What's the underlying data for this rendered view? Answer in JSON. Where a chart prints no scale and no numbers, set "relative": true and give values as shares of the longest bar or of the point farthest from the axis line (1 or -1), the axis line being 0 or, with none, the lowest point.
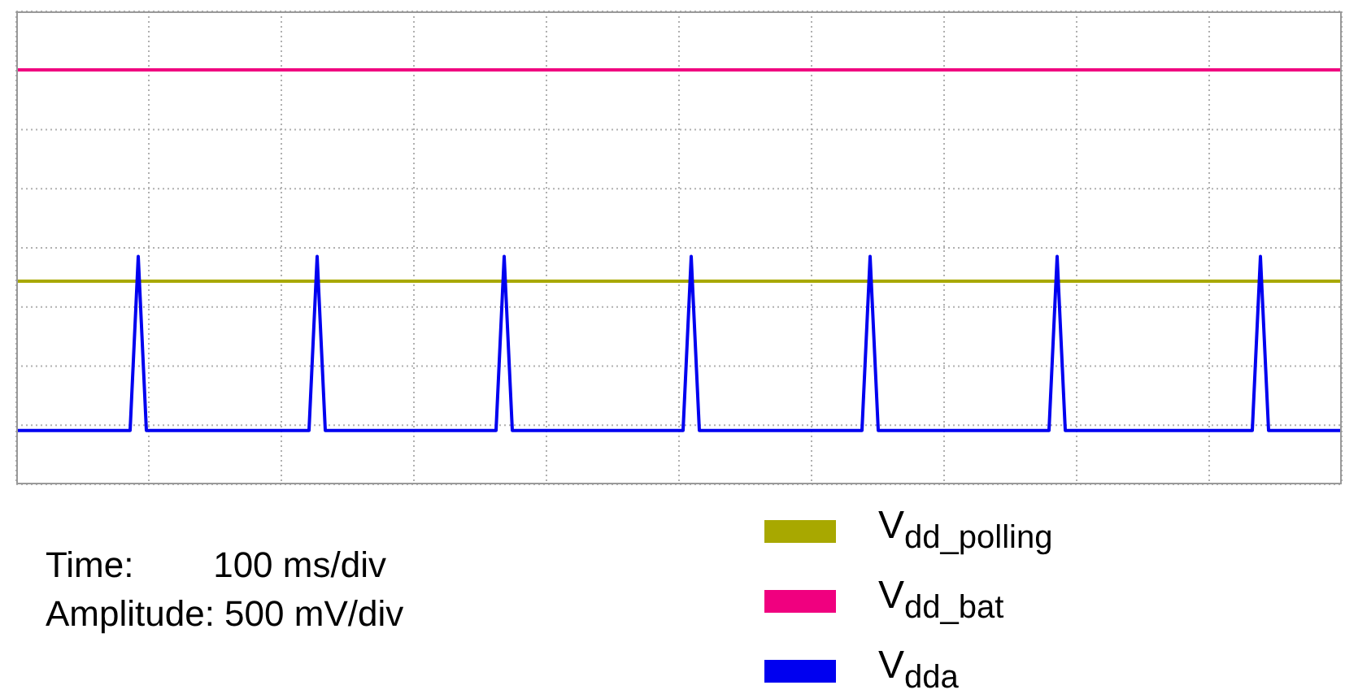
{
  "chart_data": {
    "type": "line",
    "relative": true,
    "grid": true,
    "legend": "bottom right",
    "marker": "none",
    "line_style": "solid",
    "annotations": [
      "Time:        100 ms/div",
      "Amplitude: 500 mV/div"
    ],
    "categories": [
      null,
      null,
      null,
      null,
      null,
      null,
      null,
      null,
      null,
      null,
      null,
      null,
      null,
      null,
      null,
      null,
      null,
      null,
      null,
      null,
      null,
      null,
      null,
      null,
      null,
      null,
      null,
      null,
      null,
      null,
      null,
      null,
      null,
      null,
      null,
      null,
      null,
      null,
      null,
      null,
      null,
      null,
      null,
      null,
      null,
      null,
      null,
      null,
      null,
      null,
      null,
      null,
      null,
      null,
      null,
      null,
      null,
      null,
      null,
      null,
      null,
      null,
      null,
      null,
      null,
      null,
      null,
      null,
      null,
      null,
      null,
      null,
      null,
      null,
      null,
      null,
      null,
      null,
      null,
      null,
      null,
      null,
      null,
      null,
      null,
      null,
      null,
      null,
      null,
      null,
      null,
      null,
      null,
      null,
      null,
      null,
      null,
      null,
      null,
      null,
      null,
      null,
      null,
      null,
      null,
      null,
      null,
      null,
      null,
      null,
      null,
      null,
      null,
      null,
      null,
      null,
      null,
      null,
      null,
      null,
      null,
      null,
      null,
      null,
      null,
      null,
      null,
      null,
      null,
      null,
      null,
      null,
      null,
      null,
      null,
      null,
      null,
      null,
      null,
      null,
      null,
      null,
      null,
      null,
      null,
      null,
      null,
      null,
      null,
      null,
      null,
      null,
      null,
      null,
      null,
      null,
      null,
      null,
      null,
      null,
      null,
      null,
      null,
      null
    ],
    "series": [
      {
        "name": "V$_{dd_polling}$",
        "color": "#a8a800",
        "values": [
          0.49,
          0.49,
          0.49,
          0.49,
          0.49,
          0.49,
          0.49,
          0.49,
          0.49,
          0.49,
          0.49,
          0.49,
          0.49,
          0.49,
          0.49,
          0.49,
          0.49,
          0.49,
          0.49,
          0.49,
          0.49,
          0.49,
          0.49,
          0.49,
          0.49,
          0.49,
          0.49,
          0.49,
          0.49,
          0.49,
          0.49,
          0.49,
          0.49,
          0.49,
          0.49,
          0.49,
          0.49,
          0.49,
          0.49,
          0.49,
          0.49,
          0.49,
          0.49,
          0.49,
          0.49,
          0.49,
          0.49,
          0.49,
          0.49,
          0.49,
          0.49,
          0.49,
          0.49,
          0.49,
          0.49,
          0.49,
          0.49,
          0.49,
          0.49,
          0.49,
          0.49,
          0.49,
          0.49,
          0.49,
          0.49,
          0.49,
          0.49,
          0.49,
          0.49,
          0.49,
          0.49,
          0.49,
          0.49,
          0.49,
          0.49,
          0.49,
          0.49,
          0.49,
          0.49,
          0.49,
          0.49,
          0.49,
          0.49,
          0.49,
          0.49,
          0.49,
          0.49,
          0.49,
          0.49,
          0.49,
          0.49,
          0.49,
          0.49,
          0.49,
          0.49,
          0.49,
          0.49,
          0.49,
          0.49,
          0.49,
          0.49,
          0.49,
          0.49,
          0.49,
          0.49,
          0.49,
          0.49,
          0.49,
          0.49,
          0.49,
          0.49,
          0.49,
          0.49,
          0.49,
          0.49,
          0.49,
          0.49,
          0.49,
          0.49,
          0.49,
          0.49,
          0.49,
          0.49,
          0.49,
          0.49,
          0.49,
          0.49,
          0.49,
          0.49,
          0.49,
          0.49,
          0.49,
          0.49,
          0.49,
          0.49,
          0.49,
          0.49,
          0.49,
          0.49,
          0.49,
          0.49,
          0.49,
          0.49,
          0.49,
          0.49,
          0.49,
          0.49,
          0.49,
          0.49,
          0.49,
          0.49,
          0.49,
          0.49,
          0.49,
          0.49,
          0.49,
          0.49,
          0.49,
          0.49,
          0.49,
          0.49,
          0.49,
          0.49,
          0.49
        ]
      },
      {
        "name": "V$_{dd_bat}$",
        "color": "#f0007f",
        "values": [
          1,
          1,
          1,
          1,
          1,
          1,
          1,
          1,
          1,
          1,
          1,
          1,
          1,
          1,
          1,
          1,
          1,
          1,
          1,
          1,
          1,
          1,
          1,
          1,
          1,
          1,
          1,
          1,
          1,
          1,
          1,
          1,
          1,
          1,
          1,
          1,
          1,
          1,
          1,
          1,
          1,
          1,
          1,
          1,
          1,
          1,
          1,
          1,
          1,
          1,
          1,
          1,
          1,
          1,
          1,
          1,
          1,
          1,
          1,
          1,
          1,
          1,
          1,
          1,
          1,
          1,
          1,
          1,
          1,
          1,
          1,
          1,
          1,
          1,
          1,
          1,
          1,
          1,
          1,
          1,
          1,
          1,
          1,
          1,
          1,
          1,
          1,
          1,
          1,
          1,
          1,
          1,
          1,
          1,
          1,
          1,
          1,
          1,
          1,
          1,
          1,
          1,
          1,
          1,
          1,
          1,
          1,
          1,
          1,
          1,
          1,
          1,
          1,
          1,
          1,
          1,
          1,
          1,
          1,
          1,
          1,
          1,
          1,
          1,
          1,
          1,
          1,
          1,
          1,
          1,
          1,
          1,
          1,
          1,
          1,
          1,
          1,
          1,
          1,
          1,
          1,
          1,
          1,
          1,
          1,
          1,
          1,
          1,
          1,
          1,
          1,
          1,
          1,
          1,
          1,
          1,
          1,
          1,
          1,
          1,
          1,
          1,
          1,
          1
        ]
      },
      {
        "name": "V$_{dda}$",
        "color": "#0000f0",
        "values": [
          0.13,
          0.13,
          0.13,
          0.13,
          0.13,
          0.13,
          0.13,
          0.13,
          0.13,
          0.13,
          0.13,
          0.13,
          0.13,
          0.13,
          0.13,
          0.55,
          0.13,
          0.13,
          0.13,
          0.13,
          0.13,
          0.13,
          0.13,
          0.13,
          0.13,
          0.13,
          0.13,
          0.13,
          0.13,
          0.13,
          0.13,
          0.13,
          0.13,
          0.13,
          0.13,
          0.13,
          0.13,
          0.55,
          0.13,
          0.13,
          0.13,
          0.13,
          0.13,
          0.13,
          0.13,
          0.13,
          0.13,
          0.13,
          0.13,
          0.13,
          0.13,
          0.13,
          0.13,
          0.13,
          0.13,
          0.13,
          0.13,
          0.13,
          0.13,
          0.13,
          0.55,
          0.13,
          0.13,
          0.13,
          0.13,
          0.13,
          0.13,
          0.13,
          0.13,
          0.13,
          0.13,
          0.13,
          0.13,
          0.13,
          0.13,
          0.13,
          0.13,
          0.13,
          0.13,
          0.13,
          0.13,
          0.13,
          0.13,
          0.55,
          0.13,
          0.13,
          0.13,
          0.13,
          0.13,
          0.13,
          0.13,
          0.13,
          0.13,
          0.13,
          0.13,
          0.13,
          0.13,
          0.13,
          0.13,
          0.13,
          0.13,
          0.13,
          0.13,
          0.13,
          0.13,
          0.55,
          0.13,
          0.13,
          0.13,
          0.13,
          0.13,
          0.13,
          0.13,
          0.13,
          0.13,
          0.13,
          0.13,
          0.13,
          0.13,
          0.13,
          0.13,
          0.13,
          0.13,
          0.13,
          0.13,
          0.13,
          0.13,
          0.13,
          0.55,
          0.13,
          0.13,
          0.13,
          0.13,
          0.13,
          0.13,
          0.13,
          0.13,
          0.13,
          0.13,
          0.13,
          0.13,
          0.13,
          0.13,
          0.13,
          0.13,
          0.13,
          0.13,
          0.13,
          0.13,
          0.13,
          0.13,
          0.13,
          0.13,
          0.55,
          0.13,
          0.13,
          0.13,
          0.13,
          0.13,
          0.13,
          0.13,
          0.13,
          0.13,
          0.13
        ]
      }
    ]
  }
}
